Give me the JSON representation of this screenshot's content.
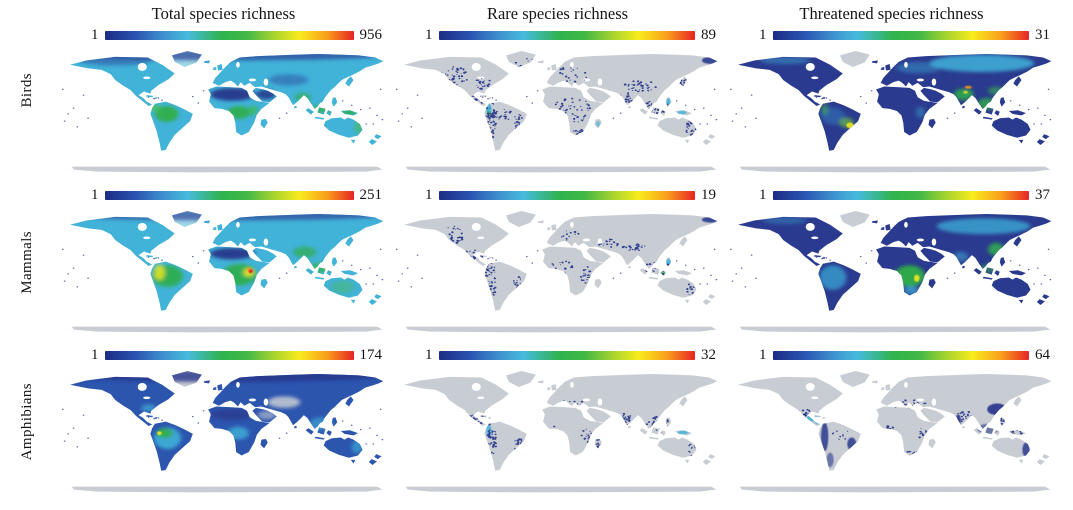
{
  "figure": {
    "column_titles": [
      "Total species richness",
      "Rare species richness",
      "Threatened species richness"
    ],
    "row_labels": [
      "Birds",
      "Mammals",
      "Amphibians"
    ],
    "colorbar_colors": [
      "#1c2d84",
      "#2a52b0",
      "#45bbdd",
      "#2fb34d",
      "#a8d42e",
      "#f7ec1d",
      "#f9a01b",
      "#e62425"
    ],
    "no_data_land_color": "#c8ccd3",
    "cells": [
      {
        "row": "Birds",
        "column": "Total species richness",
        "scale_min": "1",
        "scale_max": "956",
        "pattern": "birds-total"
      },
      {
        "row": "Birds",
        "column": "Rare species richness",
        "scale_min": "1",
        "scale_max": "89",
        "pattern": "birds-rare"
      },
      {
        "row": "Birds",
        "column": "Threatened species richness",
        "scale_min": "1",
        "scale_max": "31",
        "pattern": "birds-threatened"
      },
      {
        "row": "Mammals",
        "column": "Total species richness",
        "scale_min": "1",
        "scale_max": "251",
        "pattern": "mammals-total"
      },
      {
        "row": "Mammals",
        "column": "Rare species richness",
        "scale_min": "1",
        "scale_max": "19",
        "pattern": "mammals-rare"
      },
      {
        "row": "Mammals",
        "column": "Threatened species richness",
        "scale_min": "1",
        "scale_max": "37",
        "pattern": "mammals-threatened"
      },
      {
        "row": "Amphibians",
        "column": "Total species richness",
        "scale_min": "1",
        "scale_max": "174",
        "pattern": "amphibians-total"
      },
      {
        "row": "Amphibians",
        "column": "Rare species richness",
        "scale_min": "1",
        "scale_max": "32",
        "pattern": "amphibians-rare"
      },
      {
        "row": "Amphibians",
        "column": "Threatened species richness",
        "scale_min": "1",
        "scale_max": "64",
        "pattern": "amphibians-threatened"
      }
    ]
  }
}
